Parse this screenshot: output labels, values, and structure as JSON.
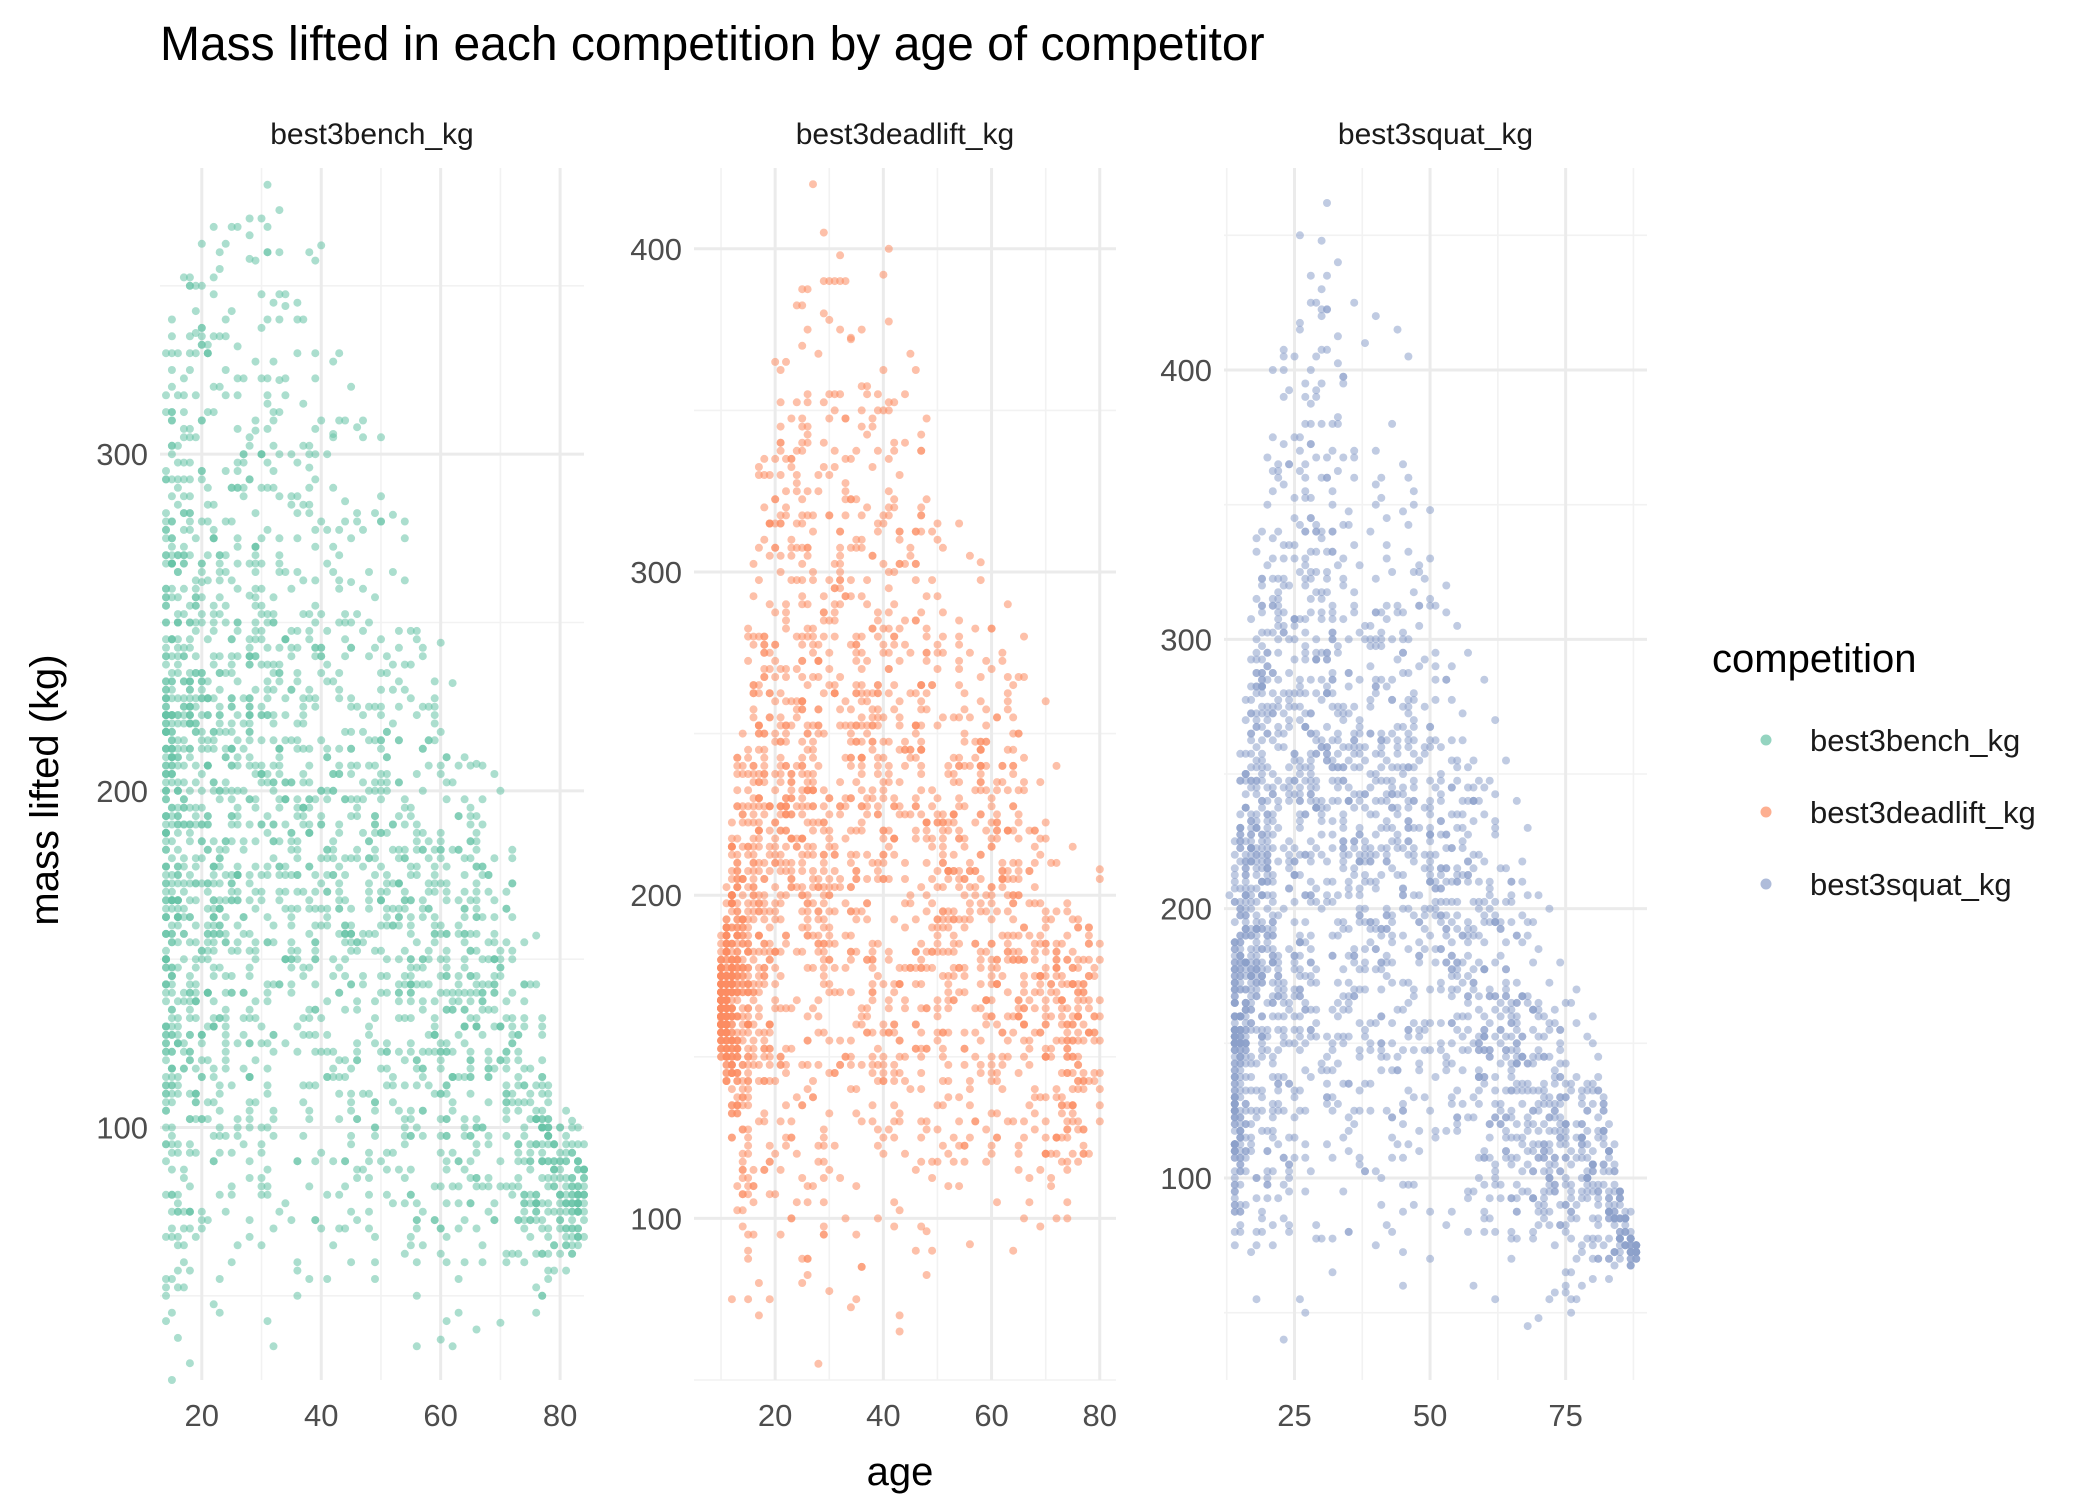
{
  "chart_data": {
    "type": "scatter",
    "title": "Mass lifted in each competition by age of competitor",
    "xlabel": "age",
    "ylabel": "mass lifted (kg)",
    "grid": true,
    "legend": {
      "title": "competition",
      "placement": "right",
      "entries": [
        "best3bench_kg",
        "best3deadlift_kg",
        "best3squat_kg"
      ]
    },
    "colors": {
      "best3bench_kg": "#66c2a5",
      "best3deadlift_kg": "#fc8d62",
      "best3squat_kg": "#8da0cb"
    },
    "facets": [
      {
        "name": "best3bench_kg",
        "xlim": [
          13,
          84
        ],
        "ylim": [
          25,
          385
        ],
        "x_ticks": [
          20,
          40,
          60,
          80
        ],
        "x_tick_labels": [
          "20",
          "40",
          "60",
          "80"
        ],
        "y_ticks": [
          100,
          200,
          300
        ],
        "y_tick_labels": [
          "100",
          "200",
          "300"
        ],
        "envelope": [
          [
            14,
            25,
            340
          ],
          [
            20,
            25,
            380
          ],
          [
            30,
            32,
            385
          ],
          [
            40,
            35,
            360
          ],
          [
            50,
            42,
            310
          ],
          [
            60,
            40,
            240
          ],
          [
            70,
            40,
            210
          ],
          [
            80,
            50,
            110
          ],
          [
            84,
            60,
            100
          ]
        ],
        "points": [
          [
            31,
            380
          ],
          [
            30,
            370
          ],
          [
            40,
            362
          ],
          [
            38,
            360
          ],
          [
            28,
            358
          ],
          [
            18,
            350
          ],
          [
            32,
            345
          ],
          [
            34,
            344
          ],
          [
            19,
            336
          ],
          [
            22,
            335
          ],
          [
            26,
            332
          ],
          [
            36,
            330
          ],
          [
            24,
            325
          ],
          [
            33,
            322
          ],
          [
            40,
            310
          ],
          [
            42,
            306
          ],
          [
            50,
            305
          ],
          [
            46,
            308
          ],
          [
            29,
            307
          ],
          [
            38,
            296
          ],
          [
            44,
            286
          ],
          [
            52,
            282
          ],
          [
            54,
            275
          ],
          [
            20,
            262
          ],
          [
            60,
            244
          ],
          [
            62,
            232
          ],
          [
            64,
            210
          ],
          [
            66,
            208
          ],
          [
            70,
            200
          ],
          [
            72,
            180
          ],
          [
            68,
            170
          ],
          [
            74,
            155
          ],
          [
            76,
            157
          ],
          [
            72,
            150
          ],
          [
            82,
            102
          ],
          [
            78,
            100
          ],
          [
            80,
            80
          ],
          [
            82,
            80
          ],
          [
            76,
            75
          ],
          [
            78,
            70
          ],
          [
            74,
            60
          ],
          [
            76,
            45
          ],
          [
            70,
            42
          ],
          [
            66,
            40
          ],
          [
            60,
            37
          ],
          [
            62,
            35
          ],
          [
            56,
            35
          ],
          [
            32,
            35
          ],
          [
            18,
            30
          ],
          [
            15,
            25
          ],
          [
            58,
            150
          ],
          [
            56,
            190
          ],
          [
            50,
            230
          ],
          [
            48,
            250
          ],
          [
            45,
            262
          ],
          [
            42,
            265
          ],
          [
            26,
            260
          ],
          [
            28,
            258
          ],
          [
            35,
            300
          ],
          [
            40,
            280
          ],
          [
            44,
            240
          ],
          [
            30,
            300
          ]
        ]
      },
      {
        "name": "best3deadlift_kg",
        "xlim": [
          5,
          83
        ],
        "ylim": [
          50,
          425
        ],
        "x_ticks": [
          20,
          40,
          60,
          80
        ],
        "x_tick_labels": [
          "20",
          "40",
          "60",
          "80"
        ],
        "y_ticks": [
          100,
          200,
          300,
          400
        ],
        "y_tick_labels": [
          "100",
          "200",
          "300",
          "400"
        ],
        "envelope": [
          [
            10,
            150,
            180
          ],
          [
            15,
            70,
            300
          ],
          [
            18,
            70,
            360
          ],
          [
            22,
            70,
            380
          ],
          [
            27,
            55,
            420
          ],
          [
            35,
            60,
            400
          ],
          [
            45,
            62,
            400
          ],
          [
            50,
            90,
            320
          ],
          [
            55,
            95,
            310
          ],
          [
            60,
            95,
            300
          ],
          [
            65,
            90,
            280
          ],
          [
            70,
            90,
            240
          ],
          [
            75,
            100,
            200
          ],
          [
            80,
            120,
            210
          ]
        ],
        "points": [
          [
            27,
            420
          ],
          [
            41,
            400
          ],
          [
            32,
            398
          ],
          [
            40,
            392
          ],
          [
            29,
            390
          ],
          [
            30,
            378
          ],
          [
            25,
            370
          ],
          [
            34,
            372
          ],
          [
            20,
            365
          ],
          [
            36,
            350
          ],
          [
            38,
            345
          ],
          [
            42,
            340
          ],
          [
            47,
            320
          ],
          [
            50,
            315
          ],
          [
            54,
            315
          ],
          [
            58,
            303
          ],
          [
            63,
            290
          ],
          [
            66,
            280
          ],
          [
            70,
            260
          ],
          [
            72,
            240
          ],
          [
            75,
            215
          ],
          [
            80,
            208
          ],
          [
            78,
            190
          ],
          [
            74,
            160
          ],
          [
            76,
            140
          ],
          [
            70,
            120
          ],
          [
            72,
            100
          ],
          [
            66,
            100
          ],
          [
            64,
            90
          ],
          [
            56,
            92
          ],
          [
            48,
            96
          ],
          [
            46,
            90
          ],
          [
            43,
            65
          ],
          [
            35,
            75
          ],
          [
            28,
            55
          ],
          [
            19,
            75
          ],
          [
            17,
            70
          ],
          [
            15,
            75
          ],
          [
            12,
            75
          ],
          [
            10,
            162
          ],
          [
            13,
            175
          ],
          [
            60,
            120
          ],
          [
            68,
            140
          ],
          [
            52,
            110
          ],
          [
            44,
            150
          ],
          [
            38,
            180
          ],
          [
            30,
            230
          ],
          [
            24,
            260
          ],
          [
            55,
            250
          ],
          [
            62,
            210
          ]
        ]
      },
      {
        "name": "best3squat_kg",
        "xlim": [
          12,
          90
        ],
        "ylim": [
          25,
          475
        ],
        "x_ticks": [
          25,
          50,
          75
        ],
        "x_tick_labels": [
          "25",
          "50",
          "75"
        ],
        "y_ticks": [
          100,
          200,
          300,
          400
        ],
        "y_tick_labels": [
          "100",
          "200",
          "300",
          "400"
        ],
        "envelope": [
          [
            14,
            70,
            220
          ],
          [
            18,
            62,
            360
          ],
          [
            22,
            40,
            405
          ],
          [
            26,
            45,
            450
          ],
          [
            30,
            60,
            462
          ],
          [
            36,
            65,
            420
          ],
          [
            42,
            60,
            380
          ],
          [
            50,
            70,
            350
          ],
          [
            55,
            75,
            300
          ],
          [
            60,
            70,
            270
          ],
          [
            65,
            65,
            240
          ],
          [
            70,
            45,
            205
          ],
          [
            75,
            45,
            170
          ],
          [
            80,
            55,
            160
          ],
          [
            88,
            68,
            75
          ]
        ],
        "points": [
          [
            31,
            462
          ],
          [
            26,
            450
          ],
          [
            30,
            448
          ],
          [
            33,
            440
          ],
          [
            28,
            435
          ],
          [
            36,
            425
          ],
          [
            40,
            420
          ],
          [
            38,
            410
          ],
          [
            44,
            415
          ],
          [
            46,
            405
          ],
          [
            23,
            405
          ],
          [
            21,
            400
          ],
          [
            43,
            380
          ],
          [
            45,
            365
          ],
          [
            47,
            350
          ],
          [
            50,
            348
          ],
          [
            53,
            320
          ],
          [
            55,
            305
          ],
          [
            57,
            295
          ],
          [
            60,
            285
          ],
          [
            62,
            270
          ],
          [
            64,
            255
          ],
          [
            66,
            240
          ],
          [
            68,
            230
          ],
          [
            70,
            205
          ],
          [
            72,
            200
          ],
          [
            74,
            180
          ],
          [
            77,
            170
          ],
          [
            80,
            160
          ],
          [
            82,
            125
          ],
          [
            78,
            115
          ],
          [
            76,
            105
          ],
          [
            79,
            95
          ],
          [
            80,
            85
          ],
          [
            87,
            70
          ],
          [
            75,
            60
          ],
          [
            72,
            55
          ],
          [
            70,
            48
          ],
          [
            68,
            45
          ],
          [
            62,
            55
          ],
          [
            58,
            60
          ],
          [
            50,
            70
          ],
          [
            45,
            60
          ],
          [
            40,
            75
          ],
          [
            35,
            80
          ],
          [
            27,
            50
          ],
          [
            23,
            40
          ],
          [
            18,
            55
          ],
          [
            15,
            80
          ],
          [
            16,
            120
          ],
          [
            13,
            205
          ],
          [
            16,
            250
          ],
          [
            40,
            300
          ],
          [
            32,
            350
          ],
          [
            28,
            380
          ],
          [
            48,
            230
          ]
        ]
      }
    ]
  }
}
